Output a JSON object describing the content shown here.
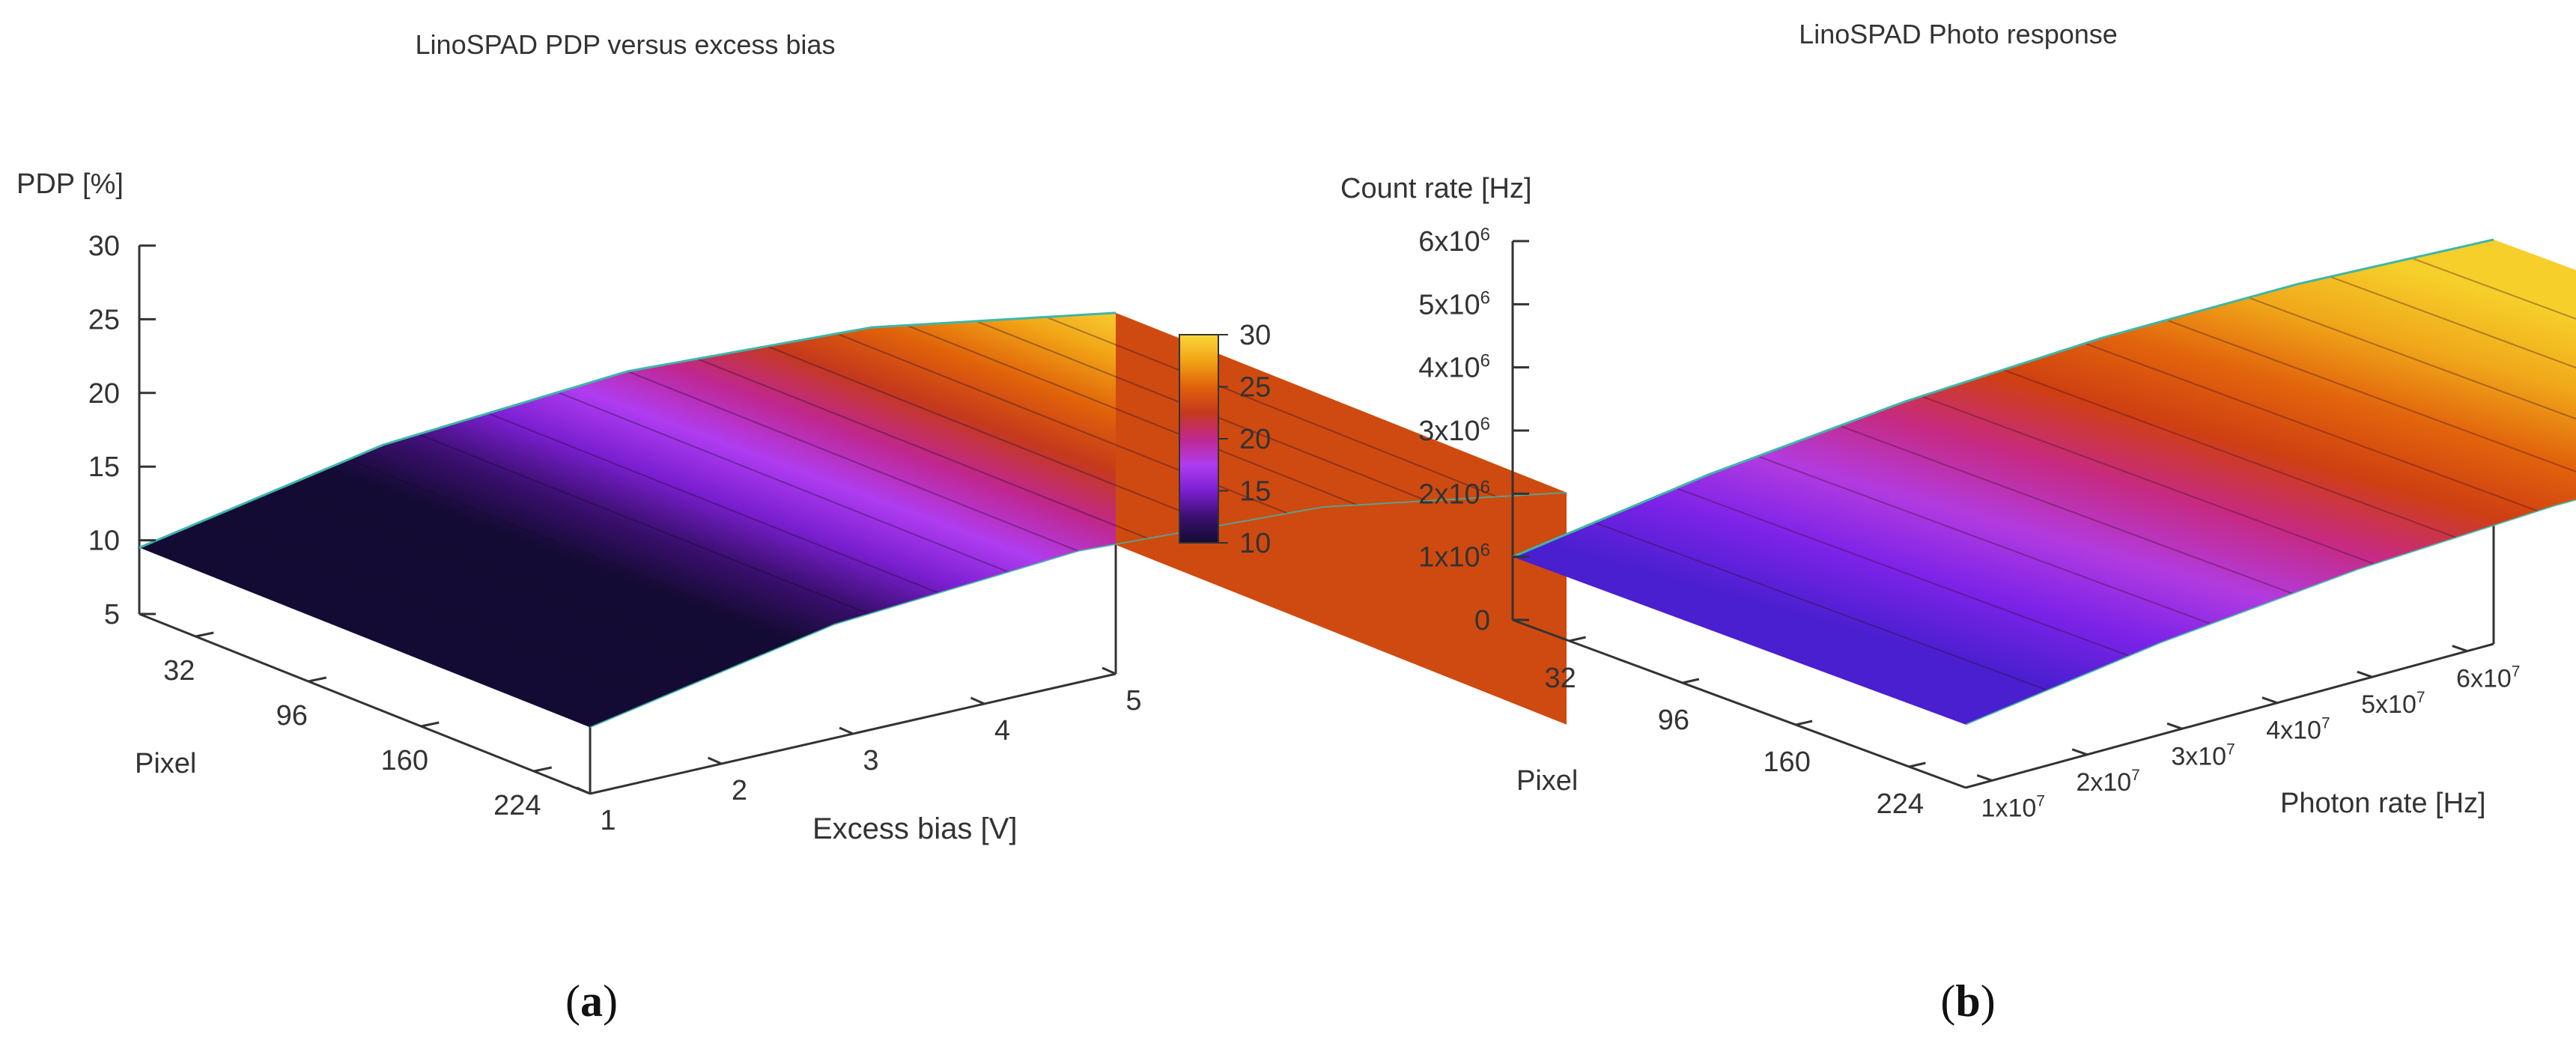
{
  "chart_data": [
    {
      "type": "surface3d",
      "panel": "a",
      "caption_letter": "a",
      "title": "LinoSPAD PDP versus excess bias",
      "zlabel": "PDP [%]",
      "xlabel": "Excess bias [V]",
      "ylabel": "Pixel",
      "zlim": [
        5,
        30
      ],
      "z_ticks": [
        5,
        10,
        15,
        20,
        25,
        30
      ],
      "z_tick_labels": [
        "5",
        "10",
        "15",
        "20",
        "25",
        "30"
      ],
      "x_ticks": [
        1,
        2,
        3,
        4,
        5
      ],
      "x_tick_labels": [
        "1",
        "2",
        "3",
        "4",
        "5"
      ],
      "y_ticks": [
        32,
        96,
        160,
        224
      ],
      "y_tick_labels": [
        "32",
        "96",
        "160",
        "224"
      ],
      "x_range": [
        1,
        5
      ],
      "y_range": [
        0,
        256
      ],
      "surface_profile": {
        "x": [
          1,
          2,
          3,
          4,
          5
        ],
        "z": [
          9.5,
          17.5,
          23.5,
          27.5,
          29.5
        ]
      },
      "colorbar": {
        "range": [
          10,
          30
        ],
        "ticks": [
          "10",
          "15",
          "20",
          "25",
          "30"
        ],
        "palette": [
          "#140b34",
          "#3b0f70",
          "#7b1fd1",
          "#b03cf0",
          "#c0278f",
          "#c53a1c",
          "#e0620a",
          "#f1a416",
          "#f9d83a"
        ]
      }
    },
    {
      "type": "surface3d",
      "panel": "b",
      "caption_letter": "b",
      "title": "LinoSPAD Photo response",
      "zlabel": "Count rate [Hz]",
      "xlabel": "Photon rate [Hz]",
      "ylabel": "Pixel",
      "zlim": [
        0,
        6000000
      ],
      "z_ticks": [
        0,
        1000000,
        2000000,
        3000000,
        4000000,
        5000000,
        6000000
      ],
      "z_tick_labels": [
        {
          "mantissa": "0",
          "exp": ""
        },
        {
          "mantissa": "1x10",
          "exp": "6"
        },
        {
          "mantissa": "2x10",
          "exp": "6"
        },
        {
          "mantissa": "3x10",
          "exp": "6"
        },
        {
          "mantissa": "4x10",
          "exp": "6"
        },
        {
          "mantissa": "5x10",
          "exp": "6"
        },
        {
          "mantissa": "6x10",
          "exp": "6"
        }
      ],
      "x_ticks": [
        10000000,
        20000000,
        30000000,
        40000000,
        50000000,
        60000000
      ],
      "x_tick_labels": [
        {
          "mantissa": "1x10",
          "exp": "7"
        },
        {
          "mantissa": "2x10",
          "exp": "7"
        },
        {
          "mantissa": "3x10",
          "exp": "7"
        },
        {
          "mantissa": "4x10",
          "exp": "7"
        },
        {
          "mantissa": "5x10",
          "exp": "7"
        },
        {
          "mantissa": "6x10",
          "exp": "7"
        }
      ],
      "y_ticks": [
        32,
        96,
        160,
        224
      ],
      "y_tick_labels": [
        "32",
        "96",
        "160",
        "224"
      ],
      "x_range": [
        10000000,
        60000000
      ],
      "y_range": [
        0,
        256
      ],
      "surface_profile": {
        "x": [
          10000000,
          20000000,
          30000000,
          40000000,
          50000000,
          60000000
        ],
        "z": [
          1000000,
          2300000,
          3450000,
          4450000,
          5300000,
          6000000
        ]
      },
      "palette": [
        "#4a1fd0",
        "#7d23e8",
        "#b23be0",
        "#c62a82",
        "#cf3f12",
        "#e2650c",
        "#f0a81a",
        "#f6cf2a"
      ]
    }
  ]
}
